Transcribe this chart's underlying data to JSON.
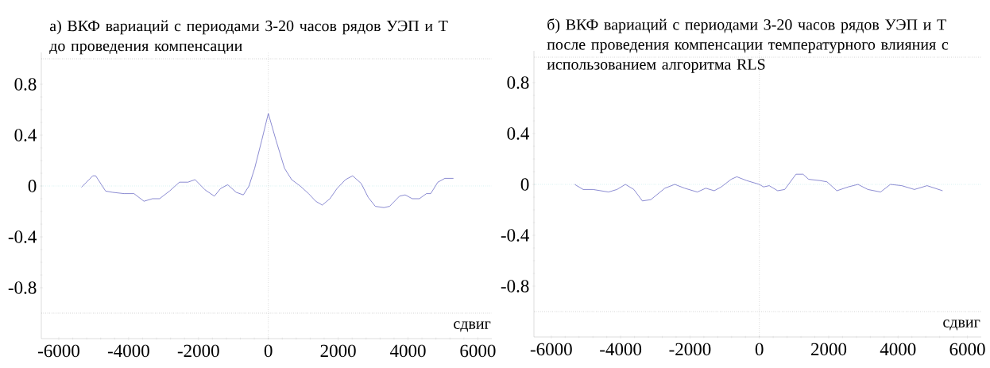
{
  "chart_data": [
    {
      "type": "line",
      "title": "а) ВКФ вариаций с периодами 3-20 часов рядов УЭП и Т",
      "subtitle": "до проведения компенсации",
      "xlabel": "сдвиг",
      "x": [
        -5350,
        -5024,
        -4943,
        -4659,
        -4455,
        -4130,
        -3846,
        -3561,
        -3317,
        -3114,
        -2829,
        -2545,
        -2301,
        -2098,
        -1813,
        -1545,
        -1366,
        -1163,
        -919,
        -715,
        -553,
        -390,
        -187,
        0,
        220,
        463,
        667,
        911,
        1154,
        1358,
        1545,
        1764,
        1967,
        2211,
        2415,
        2659,
        2862,
        3065,
        3309,
        3472,
        3756,
        3919,
        4122,
        4325,
        4528,
        4650,
        4854,
        5057,
        5301
      ],
      "series": [
        {
          "color": "#5a5abe",
          "values": [
            -0.01,
            0.08,
            0.08,
            -0.04,
            -0.05,
            -0.06,
            -0.06,
            -0.12,
            -0.1,
            -0.1,
            -0.04,
            0.03,
            0.03,
            0.05,
            -0.03,
            -0.08,
            -0.02,
            0.01,
            -0.05,
            -0.07,
            0.0,
            0.14,
            0.36,
            0.57,
            0.36,
            0.14,
            0.05,
            0.0,
            -0.06,
            -0.12,
            -0.15,
            -0.1,
            -0.02,
            0.05,
            0.08,
            0.02,
            -0.09,
            -0.16,
            -0.17,
            -0.16,
            -0.08,
            -0.07,
            -0.1,
            -0.1,
            -0.06,
            -0.06,
            0.03,
            0.06,
            0.06
          ]
        }
      ],
      "xlim": [
        -6500,
        6400
      ],
      "ylim": [
        -1.2,
        1.05
      ],
      "xticks": [
        -6000,
        -4000,
        -2000,
        0,
        2000,
        4000,
        6000
      ],
      "yticks": [
        {
          "value": -0.8,
          "label": "-0.8"
        },
        {
          "value": -0.4,
          "label": "-0.4"
        },
        0,
        {
          "value": 0.4,
          "label": "0.4"
        },
        {
          "value": 0.8,
          "label": "0.8"
        }
      ],
      "ref_lines": [
        {
          "axis": "y",
          "value": 1,
          "color": "#8c8c8c",
          "line_style": "dotted"
        },
        {
          "axis": "y",
          "value": -1,
          "color": "#8c8c8c",
          "line_style": "dotted"
        },
        {
          "axis": "y",
          "value": 0,
          "color": "#8fd6d6",
          "line_style": "dotted"
        },
        {
          "axis": "x",
          "value": 0,
          "color": "#a0a0a0",
          "line_style": "dotted"
        }
      ]
    },
    {
      "type": "line",
      "title": "б) ВКФ вариаций с периодами 3-20 часов рядов УЭП и Т",
      "subtitle": "после проведения компенсации температурного влияния с использованием алгоритма RLS",
      "xlabel": "сдвиг",
      "x": [
        -5325,
        -5081,
        -4797,
        -4350,
        -4106,
        -3862,
        -3618,
        -3374,
        -3130,
        -2724,
        -2439,
        -2154,
        -1789,
        -1545,
        -1301,
        -1098,
        -813,
        -650,
        -366,
        0,
        122,
        285,
        528,
        732,
        1057,
        1260,
        1423,
        1748,
        1951,
        2236,
        2561,
        2846,
        3130,
        3496,
        3780,
        4106,
        4472,
        4837,
        5285
      ],
      "series": [
        {
          "color": "#5a5abe",
          "values": [
            0.0,
            -0.04,
            -0.04,
            -0.06,
            -0.04,
            0.0,
            -0.04,
            -0.13,
            -0.12,
            -0.03,
            0.0,
            -0.03,
            -0.06,
            -0.03,
            -0.05,
            -0.02,
            0.04,
            0.06,
            0.03,
            0.0,
            -0.02,
            -0.01,
            -0.05,
            -0.04,
            0.08,
            0.08,
            0.04,
            0.03,
            0.02,
            -0.05,
            -0.02,
            0.0,
            -0.04,
            -0.06,
            0.0,
            -0.01,
            -0.04,
            -0.01,
            -0.05
          ]
        }
      ],
      "xlim": [
        -6500,
        6400
      ],
      "ylim": [
        -1.2,
        1.05
      ],
      "xticks": [
        -6000,
        -4000,
        -2000,
        0,
        2000,
        4000,
        6000
      ],
      "yticks": [
        {
          "value": -0.8,
          "label": "-0.8"
        },
        {
          "value": -0.4,
          "label": "-0.4"
        },
        0,
        {
          "value": 0.4,
          "label": "0.4"
        },
        {
          "value": 0.8,
          "label": "0.8"
        }
      ],
      "ref_lines": [
        {
          "axis": "y",
          "value": 1,
          "color": "#8c8c8c",
          "line_style": "dotted"
        },
        {
          "axis": "y",
          "value": -1,
          "color": "#8c8c8c",
          "line_style": "dotted"
        },
        {
          "axis": "y",
          "value": 0,
          "color": "#8fd6d6",
          "line_style": "dotted"
        },
        {
          "axis": "x",
          "value": 0,
          "color": "#a0a0a0",
          "line_style": "dotted"
        }
      ]
    }
  ]
}
